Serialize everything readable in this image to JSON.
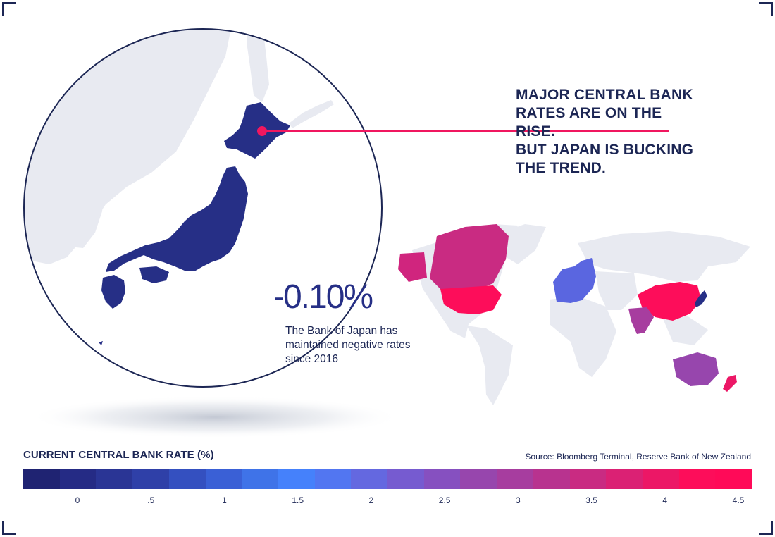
{
  "headline": {
    "line1": "MAJOR CENTRAL BANK RATES ARE ON THE RISE.",
    "line2": "BUT JAPAN IS BUCKING THE TREND."
  },
  "japan_callout": {
    "rate": "-0.10%",
    "note": "The Bank of Japan has maintained negative rates since 2016"
  },
  "legend": {
    "title": "CURRENT CENTRAL BANK RATE (%)",
    "source": "Source: Bloomberg Terminal, Reserve Bank of New Zealand",
    "ticks": [
      {
        "label": "0",
        "value": 0
      },
      {
        "label": ".5",
        "value": 0.5
      },
      {
        "label": "1",
        "value": 1
      },
      {
        "label": "1.5",
        "value": 1.5
      },
      {
        "label": "2",
        "value": 2
      },
      {
        "label": "2.5",
        "value": 2.5
      },
      {
        "label": "3",
        "value": 3
      },
      {
        "label": "3.5",
        "value": 3.5
      },
      {
        "label": "4",
        "value": 4
      },
      {
        "label": "4.5",
        "value": 4.5
      }
    ],
    "colors": [
      "#1f2372",
      "#252b85",
      "#2a3595",
      "#2f40a8",
      "#3450c0",
      "#3a60d6",
      "#3f73e8",
      "#4581fb",
      "#5276f1",
      "#6468e0",
      "#765bd0",
      "#8650c0",
      "#9746ad",
      "#a73d9f",
      "#b8338f",
      "#c92b82",
      "#db2174",
      "#ec1766",
      "#fd0d5a",
      "#ff0a58"
    ]
  },
  "map": {
    "land_color": "#e8eaf1",
    "japan_color": "#262f86",
    "highlighted_regions": [
      {
        "region": "Canada",
        "color": "#c92b82"
      },
      {
        "region": "Alaska",
        "color": "#d0257e"
      },
      {
        "region": "United States",
        "color": "#fd0d5a"
      },
      {
        "region": "Europe",
        "color": "#5a66e0"
      },
      {
        "region": "China",
        "color": "#fd0d5a"
      },
      {
        "region": "India",
        "color": "#a73d9f"
      },
      {
        "region": "Australia",
        "color": "#9746ad"
      },
      {
        "region": "New Zealand",
        "color": "#ec1766"
      },
      {
        "region": "Japan",
        "color": "#262f86"
      }
    ]
  }
}
